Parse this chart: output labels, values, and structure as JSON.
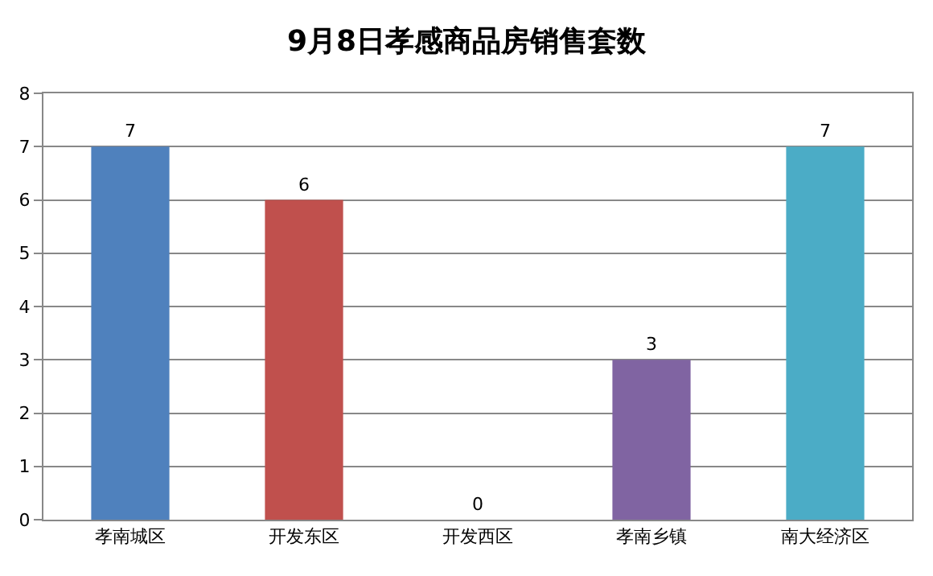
{
  "chart_data": {
    "type": "bar",
    "title": "9月8日孝感商品房销售套数",
    "categories": [
      "孝南城区",
      "开发东区",
      "开发西区",
      "孝南乡镇",
      "南大经济区"
    ],
    "values": [
      7,
      6,
      0,
      3,
      7
    ],
    "colors": [
      "#4f81bd",
      "#c0504d",
      "#9bbb59",
      "#8064a2",
      "#4bacc6"
    ],
    "ylim": [
      0,
      8
    ],
    "yticks": [
      0,
      1,
      2,
      3,
      4,
      5,
      6,
      7,
      8
    ],
    "grid": "y",
    "data_labels": true
  }
}
